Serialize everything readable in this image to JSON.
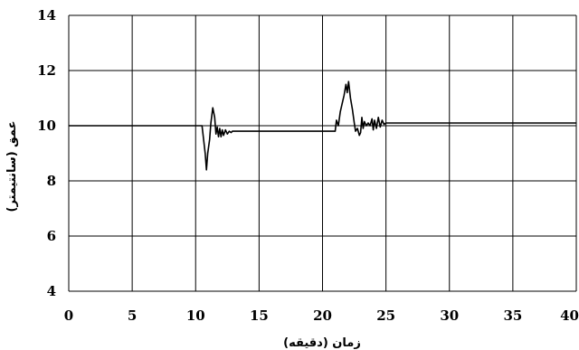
{
  "chart_data": {
    "type": "line",
    "xlabel": "زمان (دقیقه)",
    "ylabel": "عمق (سانتیمتر)",
    "xlim": [
      0,
      40
    ],
    "ylim": [
      4,
      14
    ],
    "xticks": [
      "0",
      "5",
      "10",
      "15",
      "20",
      "25",
      "30",
      "35",
      "40"
    ],
    "yticks": [
      "4",
      "6",
      "8",
      "10",
      "12",
      "14"
    ],
    "grid": true,
    "legend": "none",
    "line_color": "#000000",
    "series": [
      {
        "values": [
          [
            0,
            10.0
          ],
          [
            10.5,
            10.0
          ],
          [
            10.6,
            9.6
          ],
          [
            10.75,
            9.0
          ],
          [
            10.85,
            8.4
          ],
          [
            10.95,
            9.0
          ],
          [
            11.1,
            9.5
          ],
          [
            11.2,
            10.1
          ],
          [
            11.35,
            10.65
          ],
          [
            11.5,
            10.3
          ],
          [
            11.6,
            9.7
          ],
          [
            11.7,
            9.95
          ],
          [
            11.8,
            9.6
          ],
          [
            11.9,
            9.9
          ],
          [
            12.0,
            9.6
          ],
          [
            12.1,
            9.85
          ],
          [
            12.2,
            9.65
          ],
          [
            12.35,
            9.85
          ],
          [
            12.5,
            9.7
          ],
          [
            12.65,
            9.8
          ],
          [
            12.8,
            9.75
          ],
          [
            12.9,
            9.8
          ],
          [
            21.0,
            9.8
          ],
          [
            21.1,
            10.2
          ],
          [
            21.25,
            10.0
          ],
          [
            21.4,
            10.5
          ],
          [
            21.55,
            10.8
          ],
          [
            21.7,
            11.1
          ],
          [
            21.85,
            11.5
          ],
          [
            21.95,
            11.2
          ],
          [
            22.05,
            11.6
          ],
          [
            22.2,
            11.0
          ],
          [
            22.35,
            10.6
          ],
          [
            22.5,
            10.1
          ],
          [
            22.6,
            9.8
          ],
          [
            22.75,
            9.9
          ],
          [
            22.9,
            9.65
          ],
          [
            23.0,
            9.75
          ],
          [
            23.1,
            10.3
          ],
          [
            23.2,
            9.9
          ],
          [
            23.3,
            10.15
          ],
          [
            23.45,
            10.0
          ],
          [
            23.6,
            10.1
          ],
          [
            23.75,
            10.0
          ],
          [
            23.9,
            10.25
          ],
          [
            24.0,
            9.85
          ],
          [
            24.1,
            10.2
          ],
          [
            24.25,
            9.9
          ],
          [
            24.4,
            10.3
          ],
          [
            24.55,
            9.95
          ],
          [
            24.7,
            10.2
          ],
          [
            24.85,
            10.05
          ],
          [
            25.0,
            10.1
          ],
          [
            40,
            10.1
          ]
        ]
      }
    ]
  }
}
